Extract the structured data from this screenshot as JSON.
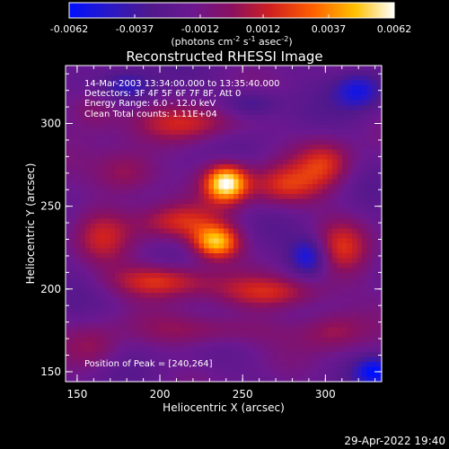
{
  "chart_data": {
    "type": "heatmap",
    "title": "Reconstructed RHESSI Image",
    "xlabel": "Heliocentric X (arcsec)",
    "ylabel": "Heliocentric Y (arcsec)",
    "xlim": [
      143,
      334
    ],
    "ylim": [
      144,
      335
    ],
    "x_ticks": [
      150,
      200,
      250,
      300
    ],
    "y_ticks": [
      150,
      200,
      250,
      300
    ],
    "colorbar": {
      "ticks": [
        "-0.0062",
        "-0.0037",
        "-0.0012",
        "0.0012",
        "0.0037",
        "0.0062"
      ],
      "range": [
        -0.0062,
        0.0062
      ],
      "unit_label": "(photons cm",
      "unit_sup1": "-2",
      "unit_mid": " s",
      "unit_sup2": "-1",
      "unit_mid2": " asec",
      "unit_sup3": "-2",
      "unit_close": ")"
    },
    "annotations": [
      "14-Mar-2003 13:34:00.000 to 13:35:40.000",
      "Detectors: 3F 4F 5F 6F 7F 8F, Att 0",
      "Energy Range: 6.0 - 12.0 keV",
      "Clean     Total counts: 1.11E+04"
    ],
    "peak_label": "Position of Peak = [240,264]",
    "peak": [
      240,
      264
    ],
    "sources": [
      {
        "x": 240,
        "y": 264,
        "amp": 1.0,
        "sx": 9,
        "sy": 8
      },
      {
        "x": 234,
        "y": 228,
        "amp": 0.82,
        "sx": 10,
        "sy": 7
      },
      {
        "x": 212,
        "y": 240,
        "amp": 0.45,
        "sx": 18,
        "sy": 8
      },
      {
        "x": 275,
        "y": 262,
        "amp": 0.45,
        "sx": 16,
        "sy": 9
      },
      {
        "x": 300,
        "y": 276,
        "amp": 0.42,
        "sx": 12,
        "sy": 10
      },
      {
        "x": 180,
        "y": 270,
        "amp": 0.38,
        "sx": 14,
        "sy": 10
      },
      {
        "x": 220,
        "y": 300,
        "amp": 0.4,
        "sx": 22,
        "sy": 8
      },
      {
        "x": 200,
        "y": 205,
        "amp": 0.5,
        "sx": 22,
        "sy": 7
      },
      {
        "x": 270,
        "y": 198,
        "amp": 0.42,
        "sx": 24,
        "sy": 7
      },
      {
        "x": 310,
        "y": 225,
        "amp": 0.38,
        "sx": 12,
        "sy": 12
      },
      {
        "x": 165,
        "y": 230,
        "amp": 0.32,
        "sx": 12,
        "sy": 12
      },
      {
        "x": 230,
        "y": 175,
        "amp": 0.3,
        "sx": 28,
        "sy": 7
      },
      {
        "x": 305,
        "y": 175,
        "amp": 0.3,
        "sx": 14,
        "sy": 9
      },
      {
        "x": 160,
        "y": 165,
        "amp": 0.25,
        "sx": 12,
        "sy": 10
      },
      {
        "x": 160,
        "y": 310,
        "amp": 0.3,
        "sx": 12,
        "sy": 10
      },
      {
        "x": 290,
        "y": 220,
        "amp": -0.5,
        "sx": 8,
        "sy": 8
      },
      {
        "x": 320,
        "y": 320,
        "amp": -0.45,
        "sx": 10,
        "sy": 8
      },
      {
        "x": 330,
        "y": 150,
        "amp": -0.5,
        "sx": 8,
        "sy": 6
      },
      {
        "x": 180,
        "y": 322,
        "amp": -0.35,
        "sx": 12,
        "sy": 7
      },
      {
        "x": 255,
        "y": 312,
        "amp": -0.3,
        "sx": 12,
        "sy": 6
      }
    ]
  },
  "footer": {
    "timestamp": "29-Apr-2022 19:40"
  }
}
